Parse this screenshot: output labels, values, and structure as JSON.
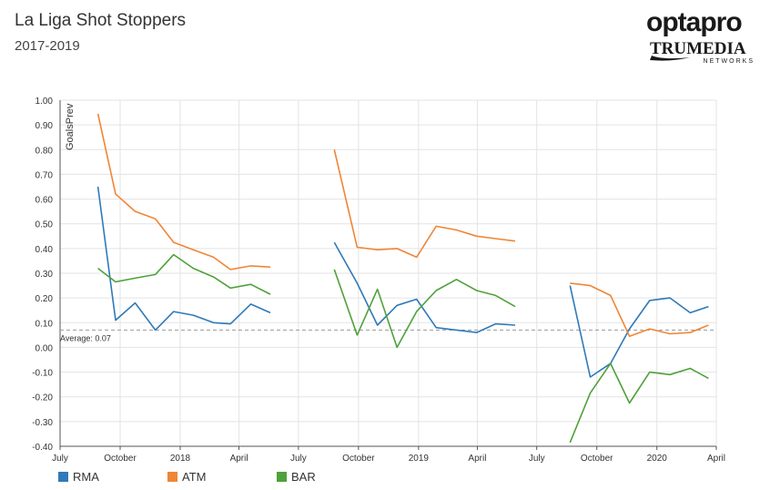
{
  "header": {
    "title": "La Liga Shot Stoppers",
    "subtitle": "2017-2019"
  },
  "logo": {
    "line1": "optapro",
    "line2": "TRUMEDIA",
    "line3": "NETWORKS"
  },
  "chart_data": {
    "type": "line",
    "title": "La Liga Shot Stoppers",
    "subtitle": "2017-2019",
    "ylabel": "GoalsPrev",
    "ylim": [
      -0.4,
      1.0
    ],
    "y_ticks": [
      1.0,
      0.9,
      0.8,
      0.7,
      0.6,
      0.5,
      0.4,
      0.3,
      0.2,
      0.1,
      0.0,
      -0.1,
      -0.2,
      -0.3,
      -0.4
    ],
    "y_tick_labels": [
      "1.00",
      "0.90",
      "0.80",
      "0.70",
      "0.60",
      "0.50",
      "0.40",
      "0.30",
      "0.20",
      "0.10",
      "0.00",
      "-0.10",
      "-0.20",
      "-0.30",
      "-0.40"
    ],
    "xlim": [
      "2017-07-01",
      "2020-04-01"
    ],
    "x_ticks": [
      {
        "date": "2017-07-01",
        "label": "July"
      },
      {
        "date": "2017-10-01",
        "label": "October"
      },
      {
        "date": "2018-01-01",
        "label": "2018"
      },
      {
        "date": "2018-04-01",
        "label": "April"
      },
      {
        "date": "2018-07-01",
        "label": "July"
      },
      {
        "date": "2018-10-01",
        "label": "October"
      },
      {
        "date": "2019-01-01",
        "label": "2019"
      },
      {
        "date": "2019-04-01",
        "label": "April"
      },
      {
        "date": "2019-07-01",
        "label": "July"
      },
      {
        "date": "2019-10-01",
        "label": "October"
      },
      {
        "date": "2020-01-01",
        "label": "2020"
      },
      {
        "date": "2020-04-01",
        "label": "April"
      }
    ],
    "grid": true,
    "average": {
      "value": 0.07,
      "label": "Average: 0.07"
    },
    "legend_position": "bottom-left",
    "series": [
      {
        "name": "RMA",
        "color": "#2f7ab8",
        "segments": [
          [
            [
              "2017-08-28",
              0.65
            ],
            [
              "2017-09-24",
              0.11
            ],
            [
              "2017-10-24",
              0.18
            ],
            [
              "2017-11-24",
              0.07
            ],
            [
              "2017-12-22",
              0.145
            ],
            [
              "2018-01-21",
              0.13
            ],
            [
              "2018-02-21",
              0.1
            ],
            [
              "2018-03-19",
              0.095
            ],
            [
              "2018-04-19",
              0.175
            ],
            [
              "2018-05-19",
              0.14
            ]
          ],
          [
            [
              "2018-08-25",
              0.425
            ],
            [
              "2018-09-29",
              0.26
            ],
            [
              "2018-10-30",
              0.09
            ],
            [
              "2018-11-29",
              0.17
            ],
            [
              "2018-12-29",
              0.195
            ],
            [
              "2019-01-28",
              0.08
            ],
            [
              "2019-02-28",
              0.07
            ],
            [
              "2019-03-31",
              0.06
            ],
            [
              "2019-04-29",
              0.095
            ],
            [
              "2019-05-29",
              0.09
            ]
          ],
          [
            [
              "2019-08-21",
              0.25
            ],
            [
              "2019-09-21",
              -0.12
            ],
            [
              "2019-10-22",
              -0.065
            ],
            [
              "2019-11-20",
              0.075
            ],
            [
              "2019-12-21",
              0.19
            ],
            [
              "2020-01-21",
              0.2
            ],
            [
              "2020-02-21",
              0.14
            ],
            [
              "2020-03-20",
              0.165
            ]
          ]
        ]
      },
      {
        "name": "ATM",
        "color": "#ef8636",
        "segments": [
          [
            [
              "2017-08-28",
              0.945
            ],
            [
              "2017-09-24",
              0.62
            ],
            [
              "2017-10-24",
              0.55
            ],
            [
              "2017-11-24",
              0.52
            ],
            [
              "2017-12-22",
              0.425
            ],
            [
              "2018-01-21",
              0.395
            ],
            [
              "2018-02-21",
              0.365
            ],
            [
              "2018-03-19",
              0.315
            ],
            [
              "2018-04-19",
              0.33
            ],
            [
              "2018-05-19",
              0.325
            ]
          ],
          [
            [
              "2018-08-25",
              0.8
            ],
            [
              "2018-09-29",
              0.405
            ],
            [
              "2018-10-30",
              0.395
            ],
            [
              "2018-11-29",
              0.4
            ],
            [
              "2018-12-29",
              0.365
            ],
            [
              "2019-01-28",
              0.49
            ],
            [
              "2019-02-28",
              0.475
            ],
            [
              "2019-03-31",
              0.45
            ],
            [
              "2019-04-29",
              0.44
            ],
            [
              "2019-05-29",
              0.43
            ]
          ],
          [
            [
              "2019-08-21",
              0.26
            ],
            [
              "2019-09-21",
              0.25
            ],
            [
              "2019-10-22",
              0.21
            ],
            [
              "2019-11-20",
              0.045
            ],
            [
              "2019-12-21",
              0.075
            ],
            [
              "2020-01-21",
              0.055
            ],
            [
              "2020-02-21",
              0.06
            ],
            [
              "2020-03-20",
              0.09
            ]
          ]
        ]
      },
      {
        "name": "BAR",
        "color": "#4fa13a",
        "segments": [
          [
            [
              "2017-08-28",
              0.32
            ],
            [
              "2017-09-24",
              0.265
            ],
            [
              "2017-10-24",
              0.28
            ],
            [
              "2017-11-24",
              0.295
            ],
            [
              "2017-12-22",
              0.375
            ],
            [
              "2018-01-21",
              0.32
            ],
            [
              "2018-02-21",
              0.285
            ],
            [
              "2018-03-19",
              0.24
            ],
            [
              "2018-04-19",
              0.255
            ],
            [
              "2018-05-19",
              0.215
            ]
          ],
          [
            [
              "2018-08-25",
              0.315
            ],
            [
              "2018-09-29",
              0.05
            ],
            [
              "2018-10-30",
              0.235
            ],
            [
              "2018-11-29",
              0.0
            ],
            [
              "2018-12-29",
              0.145
            ],
            [
              "2019-01-28",
              0.23
            ],
            [
              "2019-02-28",
              0.275
            ],
            [
              "2019-03-31",
              0.23
            ],
            [
              "2019-04-29",
              0.21
            ],
            [
              "2019-05-29",
              0.165
            ]
          ],
          [
            [
              "2019-08-21",
              -0.385
            ],
            [
              "2019-09-21",
              -0.185
            ],
            [
              "2019-10-22",
              -0.065
            ],
            [
              "2019-11-20",
              -0.225
            ],
            [
              "2019-12-21",
              -0.1
            ],
            [
              "2020-01-21",
              -0.11
            ],
            [
              "2020-02-21",
              -0.085
            ],
            [
              "2020-03-20",
              -0.125
            ]
          ]
        ]
      }
    ]
  }
}
